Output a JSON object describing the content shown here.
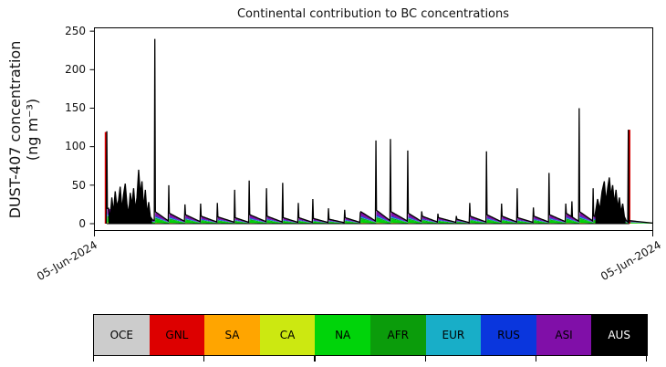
{
  "chart_data": {
    "type": "area",
    "title": "Continental contribution to BC concentrations",
    "ylabel_line1": "DUST-407 concentration",
    "ylabel_line2": "(ng m⁻³)",
    "xlabel": "",
    "yticks": [
      "0",
      "50",
      "100",
      "150",
      "200",
      "250"
    ],
    "ytick_values": [
      0,
      50,
      100,
      150,
      200,
      250
    ],
    "ylim": [
      -8.3,
      254.9
    ],
    "grid": false,
    "xtick_labels": [
      "05-Jun-2024",
      "05-Jun-2024"
    ],
    "line_color": "#000000",
    "legend_position": "bottom",
    "legend": [
      {
        "label": "OCE",
        "color": "#cccccc",
        "text_color": "#000000"
      },
      {
        "label": "GNL",
        "color": "#dd0000",
        "text_color": "#000000"
      },
      {
        "label": "SA",
        "color": "#ffa500",
        "text_color": "#000000"
      },
      {
        "label": "CA",
        "color": "#cce811",
        "text_color": "#000000"
      },
      {
        "label": "NA",
        "color": "#00d40a",
        "text_color": "#000000"
      },
      {
        "label": "AFR",
        "color": "#0b9c0b",
        "text_color": "#000000"
      },
      {
        "label": "EUR",
        "color": "#18aec8",
        "text_color": "#000000"
      },
      {
        "label": "RUS",
        "color": "#0a36dd",
        "text_color": "#000000"
      },
      {
        "label": "ASI",
        "color": "#800fa8",
        "text_color": "#000000"
      },
      {
        "label": "AUS",
        "color": "#000000",
        "text_color": "#ffffff"
      }
    ],
    "layer_order": [
      "SA",
      "CA",
      "NA",
      "AFR",
      "EUR",
      "RUS",
      "ASI"
    ],
    "layer_fractions": {
      "SA": 0.035,
      "CA": 0.055,
      "NA": 0.3,
      "AFR": 0.1,
      "EUR": 0.075,
      "RUS": 0.095,
      "ASI": 0.34
    },
    "hump_tail_ratio": 0.2,
    "humps": [
      [
        0,
        23,
        0
      ],
      [
        23,
        109,
        20
      ],
      [
        109,
        134,
        16
      ],
      [
        134,
        163,
        14
      ],
      [
        163,
        191,
        12
      ],
      [
        191,
        221,
        10
      ],
      [
        221,
        252,
        9
      ],
      [
        252,
        278,
        8
      ],
      [
        278,
        309,
        12
      ],
      [
        309,
        338,
        10
      ],
      [
        338,
        366,
        8
      ],
      [
        366,
        392,
        8
      ],
      [
        392,
        420,
        7
      ],
      [
        420,
        449,
        6
      ],
      [
        449,
        477,
        8
      ],
      [
        477,
        505,
        16
      ],
      [
        505,
        531,
        18
      ],
      [
        531,
        562,
        16
      ],
      [
        562,
        587,
        14
      ],
      [
        587,
        616,
        10
      ],
      [
        616,
        649,
        8
      ],
      [
        649,
        673,
        6
      ],
      [
        673,
        703,
        10
      ],
      [
        703,
        730,
        12
      ],
      [
        730,
        758,
        10
      ],
      [
        758,
        787,
        8
      ],
      [
        787,
        815,
        10
      ],
      [
        815,
        845,
        12
      ],
      [
        845,
        869,
        14
      ],
      [
        869,
        894,
        16
      ],
      [
        894,
        950,
        10
      ],
      [
        950,
        958,
        6
      ],
      [
        958,
        1000,
        4
      ]
    ],
    "spikes": [
      [
        23,
        120
      ],
      [
        109,
        240
      ],
      [
        134,
        50
      ],
      [
        163,
        25
      ],
      [
        191,
        26
      ],
      [
        221,
        27
      ],
      [
        252,
        44
      ],
      [
        278,
        56
      ],
      [
        309,
        46
      ],
      [
        338,
        53
      ],
      [
        366,
        27
      ],
      [
        392,
        32
      ],
      [
        420,
        20
      ],
      [
        449,
        18
      ],
      [
        477,
        14
      ],
      [
        505,
        108
      ],
      [
        531,
        110
      ],
      [
        562,
        95
      ],
      [
        587,
        16
      ],
      [
        616,
        13
      ],
      [
        649,
        10
      ],
      [
        673,
        27
      ],
      [
        703,
        94
      ],
      [
        730,
        26
      ],
      [
        758,
        46
      ],
      [
        787,
        21
      ],
      [
        815,
        66
      ],
      [
        845,
        26
      ],
      [
        856,
        29
      ],
      [
        869,
        150
      ],
      [
        894,
        46
      ],
      [
        957,
        122
      ]
    ],
    "red_spikes": [
      [
        23,
        119
      ],
      [
        957,
        122
      ]
    ],
    "clusters": [
      [
        [
          26,
          20
        ],
        [
          29,
          8
        ],
        [
          32,
          34
        ],
        [
          35,
          14
        ],
        [
          38,
          42
        ],
        [
          41,
          22
        ],
        [
          44,
          30
        ],
        [
          47,
          48
        ],
        [
          50,
          18
        ],
        [
          53,
          38
        ],
        [
          56,
          52
        ],
        [
          59,
          26
        ],
        [
          62,
          12
        ],
        [
          65,
          40
        ],
        [
          68,
          24
        ],
        [
          71,
          46
        ],
        [
          74,
          18
        ],
        [
          77,
          34
        ],
        [
          80,
          70
        ],
        [
          83,
          38
        ],
        [
          86,
          55
        ],
        [
          89,
          20
        ],
        [
          92,
          44
        ],
        [
          95,
          12
        ],
        [
          98,
          28
        ],
        [
          101,
          9
        ],
        [
          104,
          6
        ]
      ],
      [
        [
          898,
          14
        ],
        [
          902,
          32
        ],
        [
          906,
          18
        ],
        [
          910,
          42
        ],
        [
          914,
          55
        ],
        [
          917,
          28
        ],
        [
          920,
          46
        ],
        [
          923,
          60
        ],
        [
          926,
          36
        ],
        [
          929,
          50
        ],
        [
          932,
          26
        ],
        [
          935,
          44
        ],
        [
          938,
          20
        ],
        [
          941,
          34
        ],
        [
          944,
          14
        ],
        [
          947,
          26
        ],
        [
          950,
          9
        ],
        [
          952,
          6
        ]
      ]
    ]
  }
}
